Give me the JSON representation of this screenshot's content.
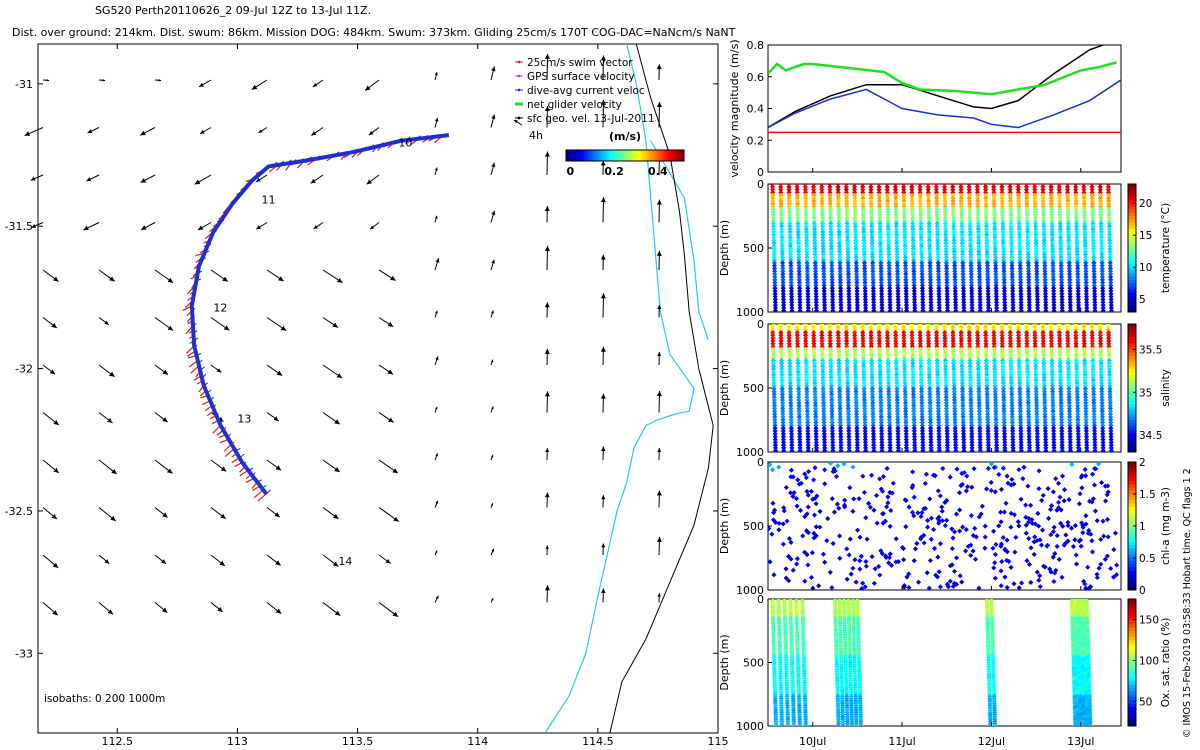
{
  "header": {
    "line1": "SG520 Perth20110626_2 09-Jul 12Z to 13-Jul 11Z.",
    "line2": "Dist. over ground: 214km. Dist. swum: 86km. Mission DOG: 484km. Swum: 373km. Gliding 25cm/s 170T COG-DAC=NaNcm/s NaNT"
  },
  "credit": "© IMOS 15-Feb-2019 03:58:33 Hobart time. QC flags 1  2",
  "colors": {
    "track": "#1f2fd0",
    "swim": "#d42020",
    "gps": "#cc33cc",
    "net": "#22dd22",
    "coast": "#22ccee",
    "isobath": "#000000"
  },
  "chart_data": [
    {
      "id": "map",
      "type": "scatter",
      "title": "",
      "xlabel": "",
      "ylabel": "",
      "xlim": [
        112.17,
        115.0
      ],
      "ylim": [
        -33.28,
        -30.86
      ],
      "x_ticks": [
        112.5,
        113,
        113.5,
        114,
        114.5,
        115
      ],
      "x_tick_labels": [
        "112.5",
        "113",
        "113.5",
        "114",
        "114.5",
        "115"
      ],
      "y_ticks": [
        -31,
        -31.5,
        -32,
        -32.5,
        -33
      ],
      "y_tick_labels": [
        "-31",
        "-31.5",
        "-32",
        "-32.5",
        "-33"
      ],
      "legend": {
        "placement": "top-right",
        "entries": [
          {
            "label": "25cm/s swim vector",
            "color": "#d42020"
          },
          {
            "label": "GPS surface velocity",
            "color": "#cc33cc"
          },
          {
            "label": "dive-avg current veloc",
            "color": "#1f2fd0"
          },
          {
            "label": "net glider velocity",
            "color": "#22dd22"
          },
          {
            "label": "sfc geo. vel. 13-Jul-2011",
            "color": "#000000"
          }
        ]
      },
      "colorbar": {
        "title": "(m/s)",
        "ticks": [
          0,
          0.2,
          0.4
        ],
        "tick_labels": [
          "0",
          "0.2",
          "0.4"
        ],
        "range": [
          -0.02,
          0.52
        ]
      },
      "track": [
        [
          113.12,
          -32.44
        ],
        [
          113.02,
          -32.33
        ],
        [
          112.93,
          -32.2
        ],
        [
          112.86,
          -32.06
        ],
        [
          112.82,
          -31.92
        ],
        [
          112.81,
          -31.78
        ],
        [
          112.84,
          -31.64
        ],
        [
          112.9,
          -31.52
        ],
        [
          112.98,
          -31.42
        ],
        [
          113.06,
          -31.34
        ],
        [
          113.13,
          -31.29
        ],
        [
          113.28,
          -31.27
        ],
        [
          113.48,
          -31.24
        ],
        [
          113.68,
          -31.2
        ],
        [
          113.88,
          -31.18
        ]
      ],
      "day_labels": [
        {
          "text": "10",
          "lon": 113.67,
          "lat": -31.22
        },
        {
          "text": "11",
          "lon": 113.1,
          "lat": -31.42
        },
        {
          "text": "12",
          "lon": 112.9,
          "lat": -31.8
        },
        {
          "text": "13",
          "lon": 113.0,
          "lat": -32.19
        },
        {
          "text": "14",
          "lon": 113.42,
          "lat": -32.69
        }
      ],
      "scale_arrow_label": "4h",
      "isobath_label": "isobaths: 0   200  1000m"
    },
    {
      "id": "velocity",
      "type": "line",
      "title": "",
      "xlabel": "",
      "ylabel": "velocity magnitude (m/s)",
      "xlim": [
        9.5,
        13.45
      ],
      "ylim": [
        0,
        0.8
      ],
      "y_ticks": [
        0,
        0.2,
        0.4,
        0.6,
        0.8
      ],
      "y_tick_labels": [
        "0",
        "0.2",
        "0.4",
        "0.6",
        "0.8"
      ],
      "series": [
        {
          "color": "#000000",
          "x": [
            9.5,
            9.8,
            10.2,
            10.6,
            11.0,
            11.4,
            11.8,
            12.0,
            12.3,
            12.7,
            13.1,
            13.45
          ],
          "y": [
            0.28,
            0.38,
            0.48,
            0.55,
            0.55,
            0.48,
            0.41,
            0.4,
            0.45,
            0.62,
            0.77,
            0.84
          ]
        },
        {
          "color": "#1f2fd0",
          "x": [
            9.5,
            9.8,
            10.2,
            10.6,
            11.0,
            11.4,
            11.8,
            12.0,
            12.3,
            12.7,
            13.1,
            13.45
          ],
          "y": [
            0.28,
            0.37,
            0.46,
            0.52,
            0.4,
            0.36,
            0.34,
            0.3,
            0.28,
            0.36,
            0.45,
            0.58
          ]
        },
        {
          "color": "#22dd22",
          "x": [
            9.5,
            9.6,
            9.7,
            9.8,
            9.9,
            10.0,
            10.8,
            11.0,
            11.2,
            11.6,
            12.0,
            12.2,
            12.6,
            13.0,
            13.2,
            13.4
          ],
          "y": [
            0.62,
            0.68,
            0.64,
            0.66,
            0.68,
            0.68,
            0.63,
            0.56,
            0.52,
            0.51,
            0.49,
            0.51,
            0.55,
            0.64,
            0.66,
            0.69
          ]
        },
        {
          "color": "#ff0000",
          "x": [
            9.5,
            13.45
          ],
          "y": [
            0.25,
            0.25
          ]
        }
      ]
    },
    {
      "id": "temperature",
      "type": "scatter",
      "ylabel": "Depth (m)",
      "ylim": [
        1000,
        0
      ],
      "y_ticks": [
        0,
        500,
        1000
      ],
      "y_tick_labels": [
        "0",
        "500",
        "1000"
      ],
      "colorbar_label": "temperature (°C)",
      "colorbar_ticks": [
        "20",
        "15",
        "10",
        "5"
      ],
      "colorbar_range": [
        3,
        23
      ],
      "dives": 42
    },
    {
      "id": "salinity",
      "type": "scatter",
      "ylabel": "Depth (m)",
      "ylim": [
        1000,
        0
      ],
      "y_ticks": [
        0,
        500,
        1000
      ],
      "y_tick_labels": [
        "0",
        "500",
        "1000"
      ],
      "colorbar_label": "salinity",
      "colorbar_ticks": [
        "35.5",
        "35",
        "34.5"
      ],
      "colorbar_range": [
        34.3,
        35.8
      ],
      "dives": 42
    },
    {
      "id": "chla",
      "type": "scatter",
      "ylabel": "Depth (m)",
      "ylim": [
        1000,
        0
      ],
      "y_ticks": [
        0,
        500,
        1000
      ],
      "y_tick_labels": [
        "0",
        "500",
        "1000"
      ],
      "colorbar_label": "chl-a (mg m-3)",
      "colorbar_ticks": [
        "2",
        "1.5",
        "1",
        "0.5",
        "0"
      ],
      "colorbar_range": [
        0,
        2
      ]
    },
    {
      "id": "oxygen",
      "type": "scatter",
      "ylabel": "Depth (m)",
      "ylim": [
        1000,
        0
      ],
      "y_ticks": [
        0,
        500,
        1000
      ],
      "y_tick_labels": [
        "0",
        "500",
        "1000"
      ],
      "x_ticks": [
        10,
        11,
        12,
        13
      ],
      "x_tick_labels": [
        "10Jul",
        "11Jul",
        "12Jul",
        "13Jul"
      ],
      "colorbar_label": "Ox. sat. ratio (%)",
      "colorbar_ticks": [
        "150",
        "100",
        "50"
      ],
      "colorbar_range": [
        20,
        175
      ],
      "dive_groups": [
        [
          9.55,
          9.95
        ],
        [
          10.25,
          10.55
        ],
        [
          11.95,
          12.05
        ],
        [
          12.9,
          13.1
        ]
      ]
    }
  ]
}
